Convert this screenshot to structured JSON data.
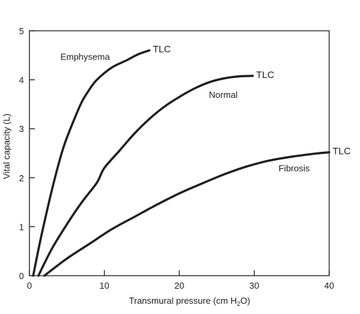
{
  "chart_data": {
    "type": "line",
    "xlabel": "Transmural pressure (cm H₂O)",
    "xlabel_parts": {
      "main": "Transmural pressure (cm H",
      "sub": "2",
      "end": "O)"
    },
    "ylabel": "Vital capacity (L)",
    "xlim": [
      0,
      40
    ],
    "ylim": [
      0,
      5
    ],
    "xticks": [
      0,
      10,
      20,
      30,
      40
    ],
    "yticks": [
      0,
      1,
      2,
      3,
      4,
      5
    ],
    "grid": false,
    "series": [
      {
        "name": "Emphysema",
        "end_label": "TLC",
        "x": [
          0.5,
          1.5,
          3,
          4.5,
          6,
          7,
          8,
          9,
          11,
          13,
          14.5,
          16
        ],
        "y": [
          0,
          0.75,
          1.75,
          2.6,
          3.2,
          3.55,
          3.8,
          4.0,
          4.25,
          4.4,
          4.52,
          4.6
        ]
      },
      {
        "name": "Normal",
        "end_label": "TLC",
        "x": [
          1.2,
          3,
          5,
          7,
          9,
          10,
          12,
          14,
          16,
          18,
          20,
          22,
          24,
          26,
          28,
          29.8
        ],
        "y": [
          0,
          0.55,
          1.05,
          1.5,
          1.9,
          2.2,
          2.55,
          2.9,
          3.2,
          3.45,
          3.65,
          3.82,
          3.95,
          4.03,
          4.07,
          4.08
        ]
      },
      {
        "name": "Fibrosis",
        "end_label": "TLC",
        "x": [
          2,
          5,
          8,
          11,
          14,
          17,
          20,
          23,
          26,
          29,
          32,
          35,
          38,
          40
        ],
        "y": [
          0,
          0.35,
          0.65,
          0.95,
          1.2,
          1.45,
          1.68,
          1.88,
          2.07,
          2.23,
          2.35,
          2.43,
          2.49,
          2.52
        ]
      }
    ]
  }
}
